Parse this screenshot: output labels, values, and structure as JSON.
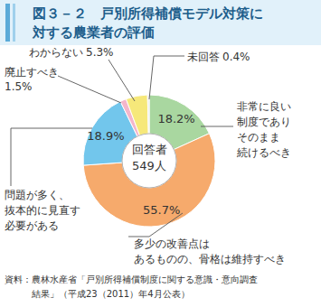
{
  "chart_data": {
    "type": "donut",
    "title": [
      "図３－２　戸別所得補償モデル対策に",
      "対する農業者の評価"
    ],
    "categories": [
      "非常に良い\n制度であり\nそのまま\n続けるべき",
      "多少の改善点は\nあるものの、骨格は維持すべき",
      "問題が多く、\n抜本的に見直す\n必要がある",
      "廃止すべき",
      "わからない",
      "未回答"
    ],
    "values": [
      18.2,
      55.7,
      18.9,
      1.5,
      5.3,
      0.4
    ],
    "value_labels": [
      "18.2%",
      "55.7%",
      "18.9%",
      "1.5%",
      "5.3%",
      "0.4%"
    ],
    "colors": [
      "#a9d7a0",
      "#f6aa6c",
      "#72c6ec",
      "#f4b6cb",
      "#f6e87a",
      "#e2e2e2"
    ],
    "data_labels": true,
    "center_label": [
      "回答者",
      "549人"
    ],
    "source": [
      "資料：農林水産省「戸別所得補償制度に関する意識・意向調査",
      "結果」（平成23（2011）年4月公表）"
    ]
  }
}
